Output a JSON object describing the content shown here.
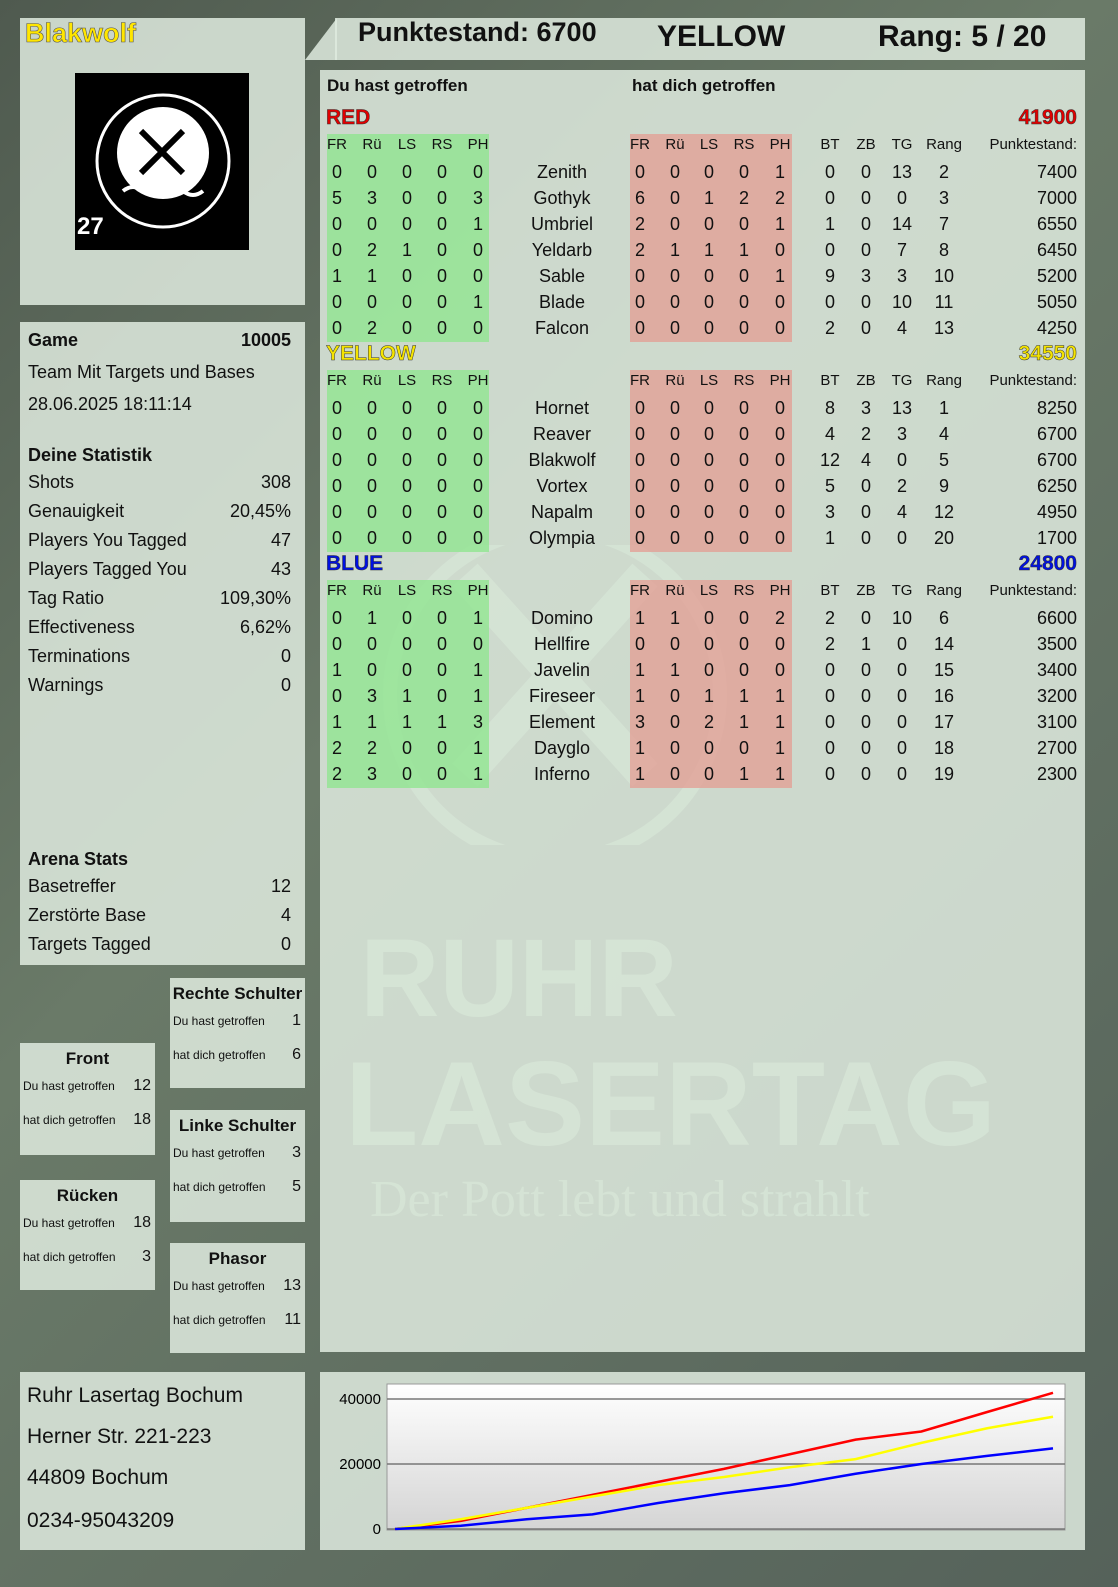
{
  "header": {
    "player": "Blakwolf",
    "score_label": "Punktestand: 6700",
    "team": "YELLOW",
    "rank_label": "Rang: 5 / 20"
  },
  "logo": {
    "text": "RUHR LASERTAG",
    "number": "27"
  },
  "watermark": {
    "line1": "RUHR",
    "line2": "LASERTAG",
    "slogan": "Der Pott lebt und strahlt"
  },
  "game": {
    "label": "Game",
    "id": "10005",
    "mode": "Team Mit Targets und Bases",
    "datetime": "28.06.2025 18:11:14"
  },
  "stats": {
    "title": "Deine Statistik",
    "rows": [
      {
        "k": "Shots",
        "v": "308"
      },
      {
        "k": "Genauigkeit",
        "v": "20,45%"
      },
      {
        "k": "Players You Tagged",
        "v": "47"
      },
      {
        "k": "Players Tagged You",
        "v": "43"
      },
      {
        "k": "Tag Ratio",
        "v": "109,30%"
      },
      {
        "k": "Effectiveness",
        "v": "6,62%"
      },
      {
        "k": "Terminations",
        "v": "0"
      },
      {
        "k": "Warnings",
        "v": "0"
      }
    ]
  },
  "arena": {
    "title": "Arena Stats",
    "rows": [
      {
        "k": "Basetreffer",
        "v": "12"
      },
      {
        "k": "Zerstörte Base",
        "v": "4"
      },
      {
        "k": "Targets Tagged",
        "v": "0"
      }
    ]
  },
  "hits": {
    "you_hit": "Du hast getroffen",
    "hit_you": "hat dich getroffen",
    "zones": [
      {
        "name": "Rechte Schulter",
        "you": "1",
        "them": "6"
      },
      {
        "name": "Front",
        "you": "12",
        "them": "18"
      },
      {
        "name": "Linke Schulter",
        "you": "3",
        "them": "5"
      },
      {
        "name": "Rücken",
        "you": "18",
        "them": "3"
      },
      {
        "name": "Phasor",
        "you": "13",
        "them": "11"
      }
    ]
  },
  "table": {
    "you_hit": "Du hast getroffen",
    "hit_you": "hat dich getroffen",
    "cols": [
      "FR",
      "Rü",
      "LS",
      "RS",
      "PH"
    ],
    "extra_cols": [
      "BT",
      "ZB",
      "TG",
      "Rang",
      "Punktestand:"
    ],
    "teams": [
      {
        "name": "RED",
        "score": "41900",
        "color": "#e00000",
        "players": [
          [
            "0",
            "0",
            "0",
            "0",
            "0",
            "Zenith",
            "0",
            "0",
            "0",
            "0",
            "1",
            "0",
            "0",
            "13",
            "2",
            "7400"
          ],
          [
            "5",
            "3",
            "0",
            "0",
            "3",
            "Gothyk",
            "6",
            "0",
            "1",
            "2",
            "2",
            "0",
            "0",
            "0",
            "3",
            "7000"
          ],
          [
            "0",
            "0",
            "0",
            "0",
            "1",
            "Umbriel",
            "2",
            "0",
            "0",
            "0",
            "1",
            "1",
            "0",
            "14",
            "7",
            "6550"
          ],
          [
            "0",
            "2",
            "1",
            "0",
            "0",
            "Yeldarb",
            "2",
            "1",
            "1",
            "1",
            "0",
            "0",
            "0",
            "7",
            "8",
            "6450"
          ],
          [
            "1",
            "1",
            "0",
            "0",
            "0",
            "Sable",
            "0",
            "0",
            "0",
            "0",
            "1",
            "9",
            "3",
            "3",
            "10",
            "5200"
          ],
          [
            "0",
            "0",
            "0",
            "0",
            "1",
            "Blade",
            "0",
            "0",
            "0",
            "0",
            "0",
            "0",
            "0",
            "10",
            "11",
            "5050"
          ],
          [
            "0",
            "2",
            "0",
            "0",
            "0",
            "Falcon",
            "0",
            "0",
            "0",
            "0",
            "0",
            "2",
            "0",
            "4",
            "13",
            "4250"
          ]
        ]
      },
      {
        "name": "YELLOW",
        "score": "34550",
        "color": "#f5e400",
        "players": [
          [
            "0",
            "0",
            "0",
            "0",
            "0",
            "Hornet",
            "0",
            "0",
            "0",
            "0",
            "0",
            "8",
            "3",
            "13",
            "1",
            "8250"
          ],
          [
            "0",
            "0",
            "0",
            "0",
            "0",
            "Reaver",
            "0",
            "0",
            "0",
            "0",
            "0",
            "4",
            "2",
            "3",
            "4",
            "6700"
          ],
          [
            "0",
            "0",
            "0",
            "0",
            "0",
            "Blakwolf",
            "0",
            "0",
            "0",
            "0",
            "0",
            "12",
            "4",
            "0",
            "5",
            "6700"
          ],
          [
            "0",
            "0",
            "0",
            "0",
            "0",
            "Vortex",
            "0",
            "0",
            "0",
            "0",
            "0",
            "5",
            "0",
            "2",
            "9",
            "6250"
          ],
          [
            "0",
            "0",
            "0",
            "0",
            "0",
            "Napalm",
            "0",
            "0",
            "0",
            "0",
            "0",
            "3",
            "0",
            "4",
            "12",
            "4950"
          ],
          [
            "0",
            "0",
            "0",
            "0",
            "0",
            "Olympia",
            "0",
            "0",
            "0",
            "0",
            "0",
            "1",
            "0",
            "0",
            "20",
            "1700"
          ]
        ]
      },
      {
        "name": "BLUE",
        "score": "24800",
        "color": "#0010e0",
        "players": [
          [
            "0",
            "1",
            "0",
            "0",
            "1",
            "Domino",
            "1",
            "1",
            "0",
            "0",
            "2",
            "2",
            "0",
            "10",
            "6",
            "6600"
          ],
          [
            "0",
            "0",
            "0",
            "0",
            "0",
            "Hellfire",
            "0",
            "0",
            "0",
            "0",
            "0",
            "2",
            "1",
            "0",
            "14",
            "3500"
          ],
          [
            "1",
            "0",
            "0",
            "0",
            "1",
            "Javelin",
            "1",
            "1",
            "0",
            "0",
            "0",
            "0",
            "0",
            "0",
            "15",
            "3400"
          ],
          [
            "0",
            "3",
            "1",
            "0",
            "1",
            "Fireseer",
            "1",
            "0",
            "1",
            "1",
            "1",
            "0",
            "0",
            "0",
            "16",
            "3200"
          ],
          [
            "1",
            "1",
            "1",
            "1",
            "3",
            "Element",
            "3",
            "0",
            "2",
            "1",
            "1",
            "0",
            "0",
            "0",
            "17",
            "3100"
          ],
          [
            "2",
            "2",
            "0",
            "0",
            "1",
            "Dayglo",
            "1",
            "0",
            "0",
            "0",
            "1",
            "0",
            "0",
            "0",
            "18",
            "2700"
          ],
          [
            "2",
            "3",
            "0",
            "0",
            "1",
            "Inferno",
            "1",
            "0",
            "0",
            "1",
            "1",
            "0",
            "0",
            "0",
            "19",
            "2300"
          ]
        ]
      }
    ]
  },
  "address": [
    "Ruhr Lasertag Bochum",
    "Herner Str. 221-223",
    "44809 Bochum",
    "0234-95043209"
  ],
  "chart_data": {
    "type": "line",
    "title": "",
    "xlabel": "",
    "ylabel": "",
    "ylim": [
      0,
      42000
    ],
    "yticks": [
      "0",
      "20000",
      "40000"
    ],
    "grid": true,
    "x": [
      0,
      1,
      2,
      3,
      4,
      5,
      6,
      7,
      8,
      9,
      10
    ],
    "series": [
      {
        "color": "#ff0000",
        "values": [
          0,
          2500,
          6500,
          10500,
          14500,
          18500,
          23000,
          27500,
          30000,
          36000,
          41900
        ]
      },
      {
        "color": "#ffff00",
        "values": [
          0,
          3000,
          6500,
          10000,
          13500,
          16000,
          19000,
          21500,
          26500,
          31000,
          34550
        ]
      },
      {
        "color": "#0000ff",
        "values": [
          0,
          1000,
          3000,
          4500,
          8000,
          11000,
          13500,
          17000,
          20000,
          22500,
          24800
        ]
      }
    ]
  }
}
